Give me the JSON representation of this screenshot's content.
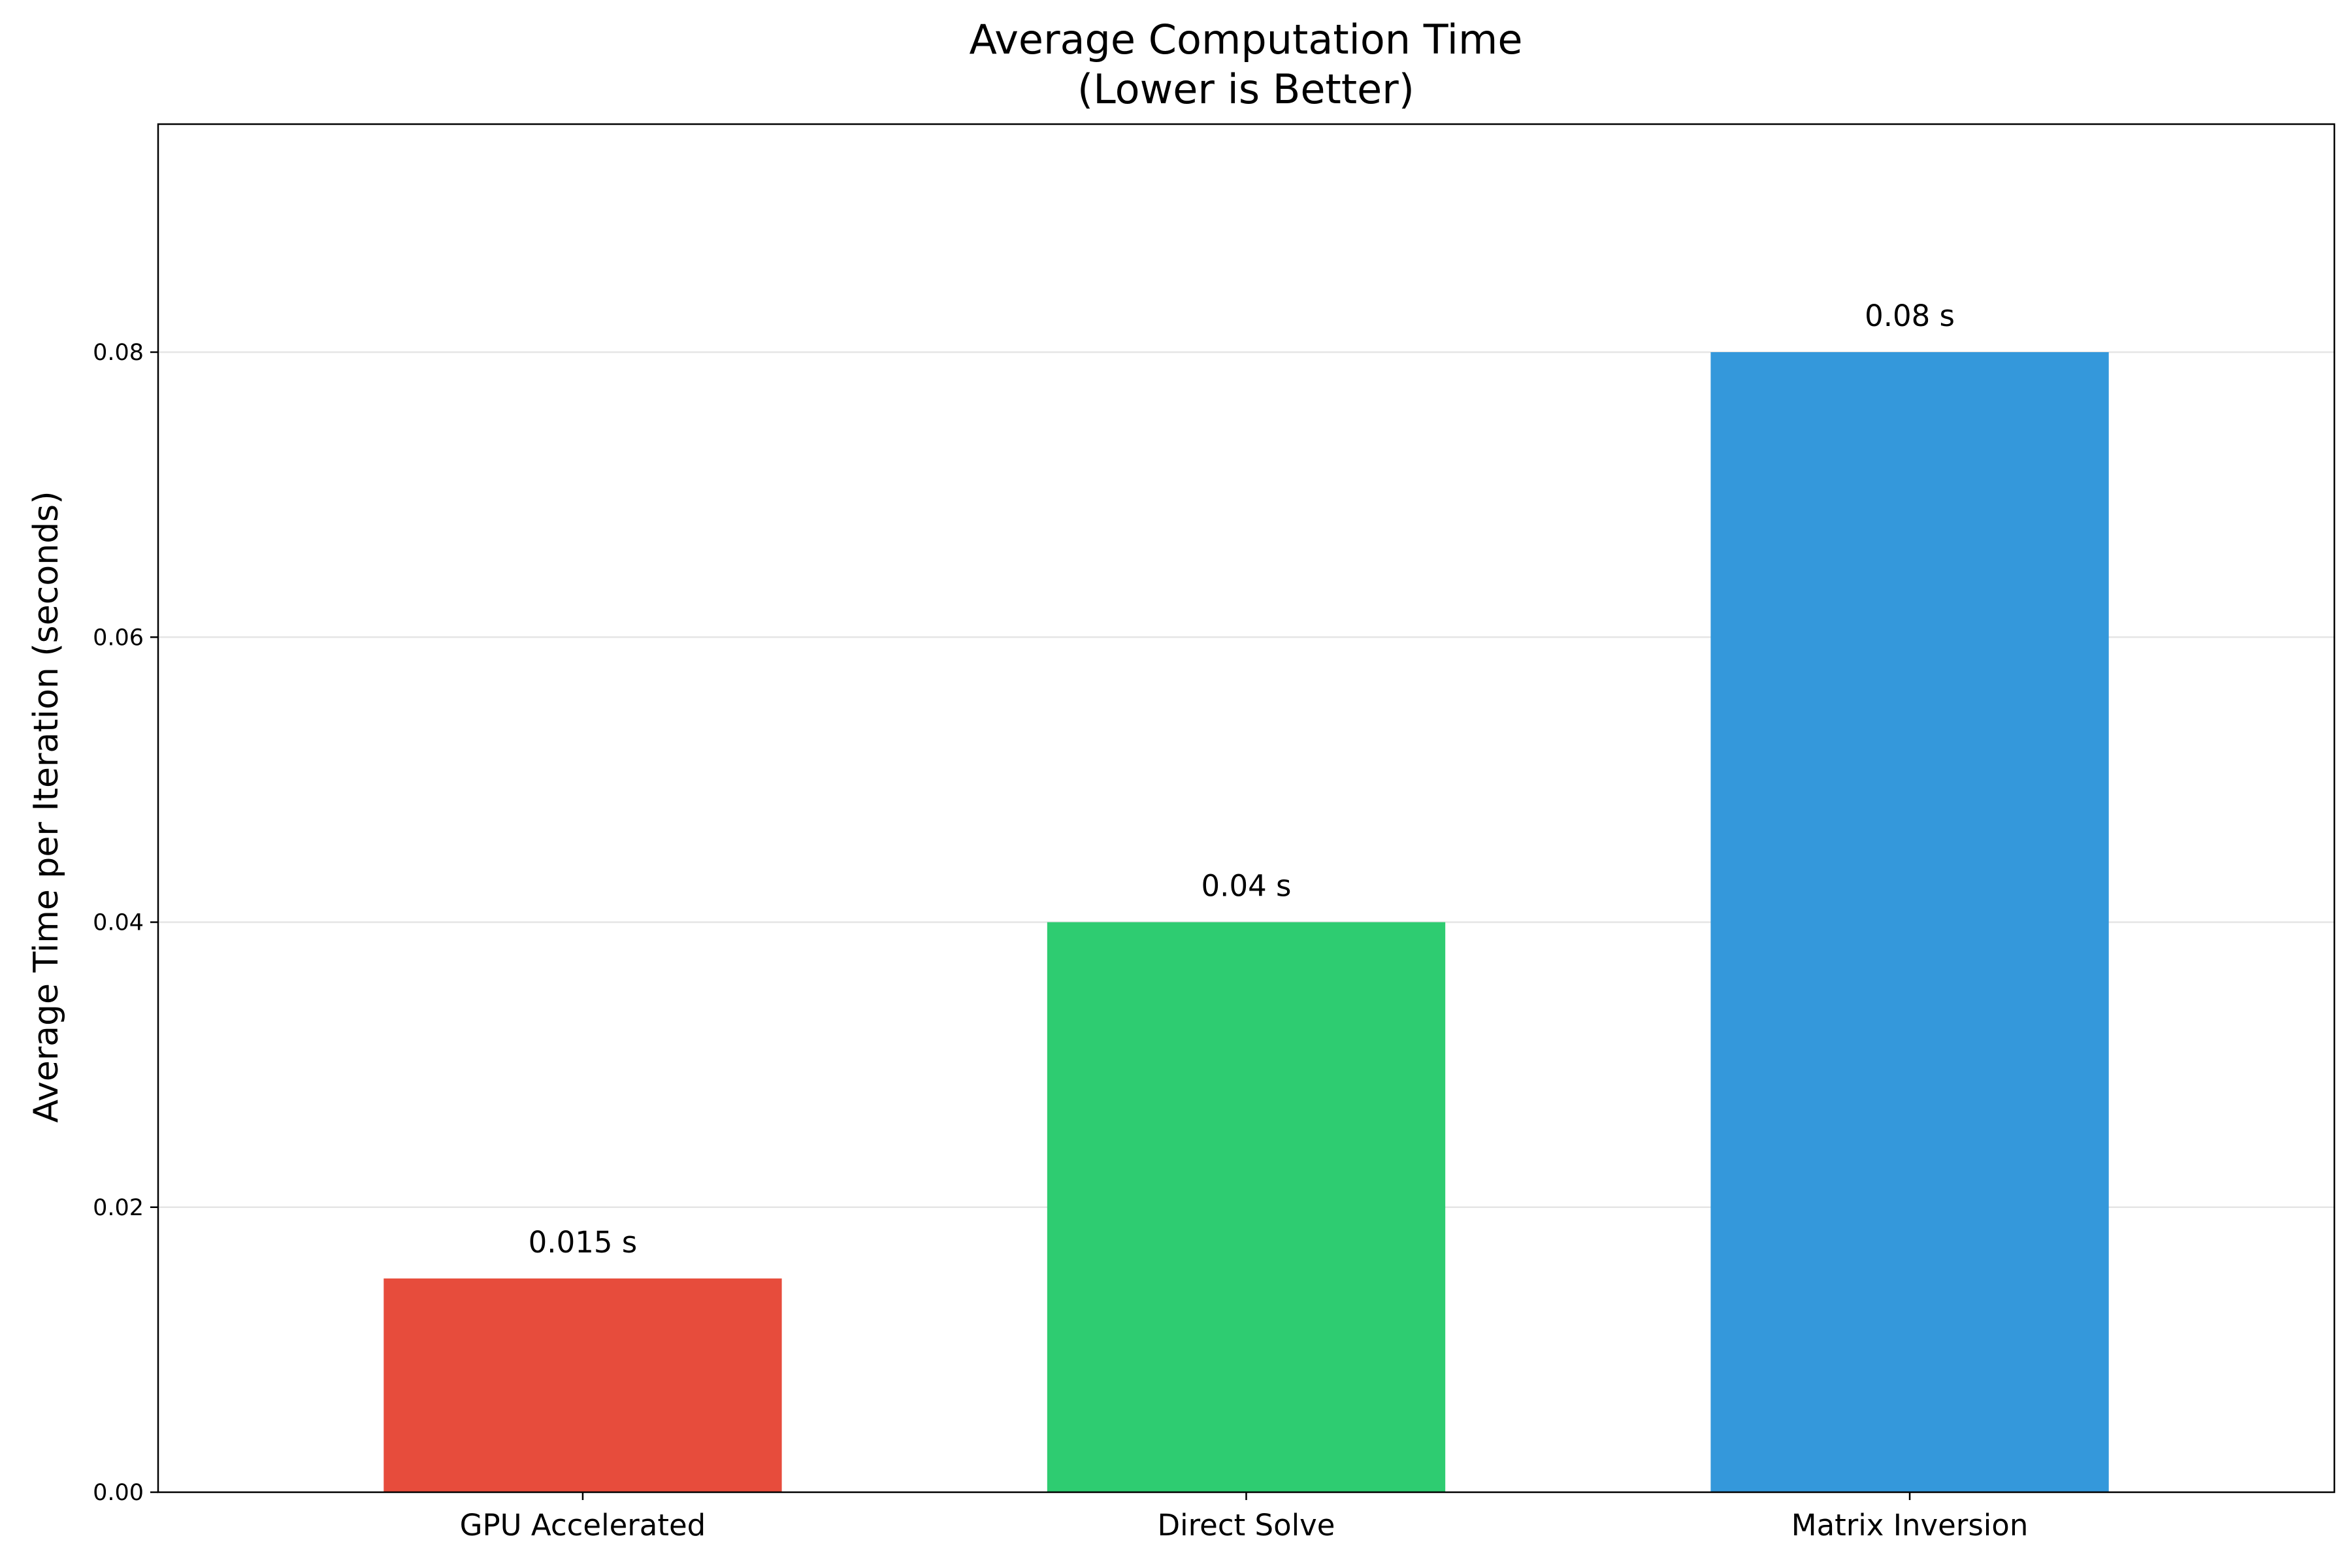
{
  "chart_data": {
    "type": "bar",
    "title_lines": [
      "Average Computation Time",
      "(Lower is Better)"
    ],
    "xlabel": "",
    "ylabel": "Average Time per Iteration (seconds)",
    "categories": [
      "GPU Accelerated",
      "Direct Solve",
      "Matrix Inversion"
    ],
    "values": [
      0.015,
      0.04,
      0.08
    ],
    "value_labels": [
      "0.015 s",
      "0.04 s",
      "0.08 s"
    ],
    "colors": [
      "#e74c3c",
      "#2ecc71",
      "#3498db"
    ],
    "ylim": [
      0,
      0.096
    ],
    "yticks": [
      0.0,
      0.02,
      0.04,
      0.06,
      0.08
    ],
    "ytick_labels": [
      "0.00",
      "0.02",
      "0.04",
      "0.06",
      "0.08"
    ],
    "grid": "y-axis only",
    "legend": "none"
  }
}
